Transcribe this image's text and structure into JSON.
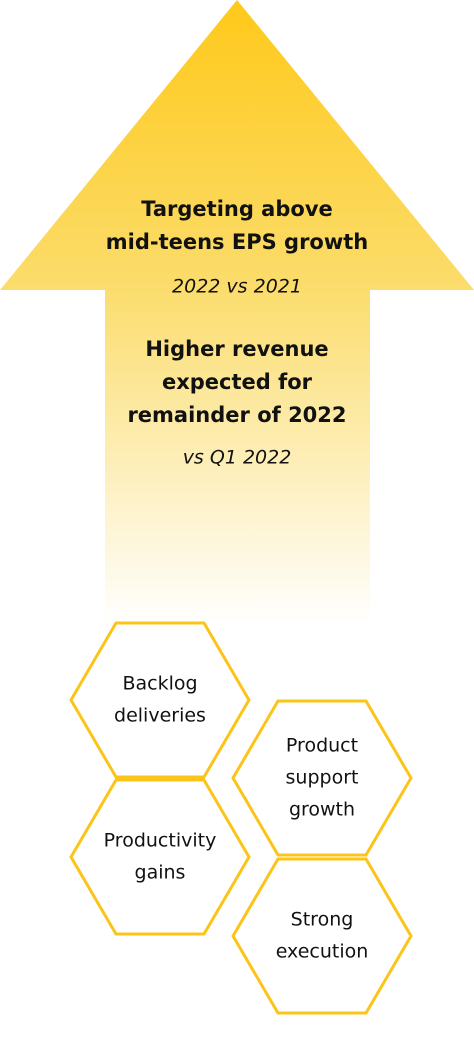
{
  "arrow": {
    "headline": [
      "Targeting above",
      "mid-teens EPS growth"
    ],
    "headline_sub": "2022 vs 2021",
    "secondary": [
      "Higher revenue",
      "expected for",
      "remainder of 2022"
    ],
    "secondary_sub": "vs Q1 2022"
  },
  "hexagons": [
    {
      "lines": [
        "Backlog",
        "deliveries"
      ]
    },
    {
      "lines": [
        "Product",
        "support",
        "growth"
      ]
    },
    {
      "lines": [
        "Productivity",
        "gains"
      ]
    },
    {
      "lines": [
        "Strong",
        "execution"
      ]
    }
  ]
}
